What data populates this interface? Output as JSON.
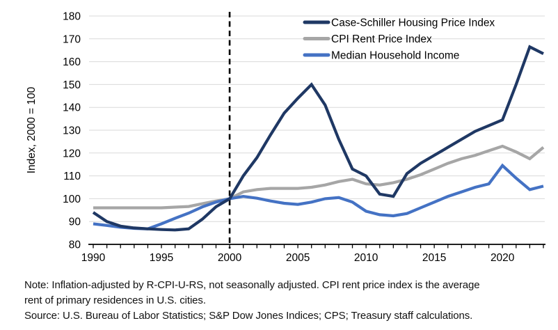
{
  "chart": {
    "y_axis_title": "Index, 2000 = 100",
    "legend": [
      {
        "label": "Case-Schiller Housing Price Index",
        "color": "#1F3864"
      },
      {
        "label": "CPI Rent Price Index",
        "color": "#A6A6A6"
      },
      {
        "label": "Median Household Income",
        "color": "#4472C4"
      }
    ],
    "notes": {
      "line1": "Note: Inflation-adjusted by R-CPI-U-RS, not seasonally adjusted. CPI rent price index is the average",
      "line2": "rent of primary residences in U.S. cities.",
      "line3": "Source: U.S. Bureau of Labor Statistics; S&P Dow Jones Indices; CPS; Treasury staff calculations."
    }
  },
  "chart_data": {
    "type": "line",
    "title": "",
    "xlabel": "",
    "ylabel": "Index, 2000 = 100",
    "ylim": [
      80,
      180
    ],
    "y_tick_step": 10,
    "xlim": [
      1990,
      2023
    ],
    "x_tick_labels": [
      "1990",
      "1995",
      "2000",
      "2005",
      "2010",
      "2015",
      "2020"
    ],
    "x_tick_label_years": [
      1990,
      1995,
      2000,
      2005,
      2010,
      2015,
      2020
    ],
    "minor_ticks_every_year": true,
    "grid": "horizontal",
    "gridline_color": "#D9D9D9",
    "axis_color": "#000000",
    "legend_position": "top-right-inside",
    "reference_line": {
      "x": 2000,
      "style": "dashed",
      "color": "#000000"
    },
    "x": [
      1990,
      1991,
      1992,
      1993,
      1994,
      1995,
      1996,
      1997,
      1998,
      1999,
      2000,
      2001,
      2002,
      2003,
      2004,
      2005,
      2006,
      2007,
      2008,
      2009,
      2010,
      2011,
      2012,
      2013,
      2014,
      2015,
      2016,
      2017,
      2018,
      2019,
      2020,
      2021,
      2022,
      2023
    ],
    "series": [
      {
        "name": "Case-Schiller Housing Price Index",
        "color": "#1F3864",
        "values": [
          94,
          90,
          88,
          87.2,
          86.8,
          86.5,
          86.3,
          86.8,
          91,
          96.5,
          100,
          110,
          118,
          128,
          137.5,
          144,
          150,
          141,
          126,
          113,
          110,
          102,
          101,
          111,
          115.5,
          119,
          122.5,
          126,
          129.5,
          132,
          134.5,
          150,
          166.5,
          163.5
        ]
      },
      {
        "name": "CPI Rent Price Index",
        "color": "#A6A6A6",
        "values": [
          96,
          96,
          96,
          96,
          96,
          96,
          96.3,
          96.6,
          97.8,
          99,
          100,
          103,
          104,
          104.5,
          104.5,
          104.5,
          105,
          106,
          107.5,
          108.5,
          106.5,
          106,
          107,
          108.5,
          110.5,
          113,
          115.5,
          117.5,
          119,
          121,
          123,
          120.5,
          117.5,
          122.5
        ]
      },
      {
        "name": "Median Household Income",
        "color": "#4472C4",
        "values": [
          89,
          88.3,
          87.5,
          87,
          86.8,
          89,
          91.4,
          93.7,
          96.4,
          98.5,
          100,
          101,
          100.2,
          99,
          98,
          97.5,
          98.5,
          100,
          100.5,
          98.5,
          94.5,
          93,
          92.5,
          93.5,
          96,
          98.5,
          101,
          103,
          105,
          106.5,
          114.5,
          109,
          104,
          105.5
        ]
      }
    ]
  }
}
